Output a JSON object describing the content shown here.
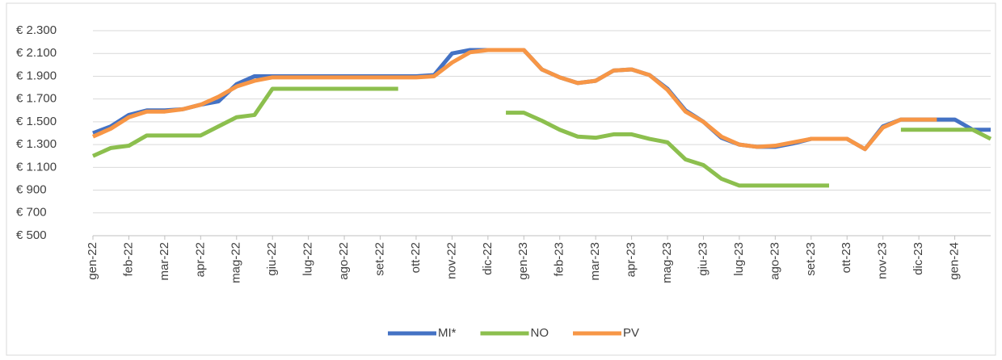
{
  "chart_data": {
    "type": "line",
    "categories": [
      "gen-22",
      null,
      "feb-22",
      null,
      "mar-22",
      null,
      "apr-22",
      null,
      "mag-22",
      null,
      "giu-22",
      null,
      "lug-22",
      null,
      "ago-22",
      null,
      "set-22",
      null,
      "ott-22",
      null,
      "nov-22",
      null,
      "dic-22",
      null,
      "gen-23",
      null,
      "feb-23",
      null,
      "mar-23",
      null,
      "apr-23",
      null,
      "mag-23",
      null,
      "giu-23",
      null,
      "lug-23",
      null,
      "ago-23",
      null,
      "set-23",
      null,
      "ott-23",
      null,
      "nov-23",
      null,
      "dic-23",
      null,
      "gen-24",
      null,
      null
    ],
    "series": [
      {
        "name": "MI*",
        "color": "#4472c4",
        "values": [
          1400,
          1460,
          1560,
          1600,
          1600,
          1610,
          1650,
          1680,
          1830,
          1900,
          1900,
          1900,
          1900,
          1900,
          1900,
          1900,
          1900,
          1900,
          1900,
          1910,
          2100,
          2130,
          2130,
          2130,
          2130,
          1960,
          1890,
          1840,
          1860,
          1950,
          1960,
          1910,
          1790,
          1600,
          1500,
          1360,
          1300,
          1280,
          1280,
          1310,
          1350,
          1350,
          1350,
          1260,
          1460,
          1520,
          1520,
          1520,
          1520,
          1430,
          1430
        ]
      },
      {
        "name": "NO",
        "color": "#8cbf4e",
        "values": [
          1200,
          1270,
          1290,
          1380,
          1380,
          1380,
          1380,
          1460,
          1540,
          1560,
          1790,
          1790,
          1790,
          1790,
          1790,
          1790,
          1790,
          1790,
          null,
          null,
          null,
          null,
          null,
          1580,
          1580,
          1510,
          1430,
          1370,
          1360,
          1390,
          1390,
          1350,
          1320,
          1170,
          1120,
          1000,
          940,
          940,
          940,
          940,
          940,
          940,
          null,
          null,
          null,
          1430,
          1430,
          1430,
          1430,
          1430,
          1350
        ]
      },
      {
        "name": "PV",
        "color": "#f79646",
        "values": [
          1370,
          1440,
          1540,
          1590,
          1590,
          1610,
          1650,
          1720,
          1810,
          1860,
          1890,
          1890,
          1890,
          1890,
          1890,
          1890,
          1890,
          1890,
          1890,
          1900,
          2020,
          2110,
          2130,
          2130,
          2130,
          1960,
          1890,
          1840,
          1860,
          1950,
          1960,
          1910,
          1780,
          1590,
          1500,
          1370,
          1300,
          1280,
          1290,
          1320,
          1350,
          1350,
          1350,
          1260,
          1450,
          1520,
          1520,
          1520,
          null,
          null,
          null
        ]
      }
    ],
    "ylim": [
      500,
      2300
    ],
    "yticks": [
      {
        "value": 500,
        "label": "€ 500"
      },
      {
        "value": 700,
        "label": "€ 700"
      },
      {
        "value": 900,
        "label": "€ 900"
      },
      {
        "value": 1100,
        "label": "€ 1.100"
      },
      {
        "value": 1300,
        "label": "€ 1.300"
      },
      {
        "value": 1500,
        "label": "€ 1.500"
      },
      {
        "value": 1700,
        "label": "€ 1.700"
      },
      {
        "value": 1900,
        "label": "€ 1.900"
      },
      {
        "value": 2100,
        "label": "€ 2.100"
      },
      {
        "value": 2300,
        "label": "€ 2.300"
      }
    ],
    "grid": true,
    "legend": "bottom"
  }
}
